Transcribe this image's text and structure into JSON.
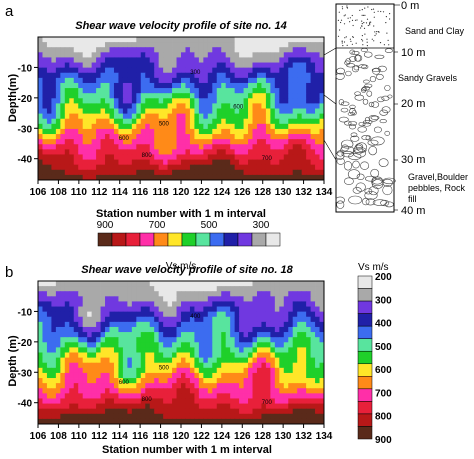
{
  "figure": {
    "panel_a_letter": "a",
    "panel_b_letter": "b"
  },
  "colors": {
    "scale": [
      "#5a2a1a",
      "#b81818",
      "#e8203a",
      "#ff2fa8",
      "#ff8a18",
      "#ffe628",
      "#1fd02a",
      "#58e49e",
      "#3c6cf0",
      "#2020a8",
      "#7038e0",
      "#a9a9a9",
      "#e8e8e8"
    ]
  },
  "chart_data": [
    {
      "type": "heatmap",
      "title": "Shear wave velocity profile of site no. 14",
      "xlabel": "Station number with 1 m interval",
      "ylabel": "Depth(m)",
      "x_ticks": [
        "106",
        "108",
        "110",
        "112",
        "114",
        "116",
        "118",
        "120",
        "122",
        "124",
        "126",
        "128",
        "130",
        "132",
        "134"
      ],
      "y_ticks": [
        "-10",
        "-20",
        "-30",
        "-40"
      ],
      "xlim": [
        106,
        134
      ],
      "ylim": [
        -47,
        0
      ],
      "value_unit": "m/s",
      "contour_labels": [
        "300",
        "500",
        "600",
        "700",
        "800",
        "600"
      ],
      "legend": {
        "title": "Vs m/s",
        "tick_labels": [
          "900",
          "700",
          "500",
          "300"
        ],
        "orientation": "horizontal"
      },
      "approx_velocity_by_depth": {
        "depth_m": [
          -2,
          -6,
          -10,
          -14,
          -18,
          -22,
          -26,
          -30,
          -34,
          -38,
          -42,
          -46
        ],
        "vs_m_s": [
          250,
          300,
          350,
          400,
          450,
          500,
          550,
          580,
          620,
          680,
          750,
          850
        ]
      }
    },
    {
      "type": "heatmap",
      "title": "Shear wave velocity profile of site no. 18",
      "xlabel": "Station number with 1 m interval",
      "ylabel": "Depth (m)",
      "x_ticks": [
        "106",
        "108",
        "110",
        "112",
        "114",
        "116",
        "118",
        "120",
        "122",
        "124",
        "126",
        "128",
        "130",
        "132",
        "134"
      ],
      "y_ticks": [
        "-10",
        "-20",
        "-30",
        "-40"
      ],
      "xlim": [
        106,
        134
      ],
      "ylim": [
        -47,
        0
      ],
      "value_unit": "m/s",
      "contour_labels": [
        "400",
        "500",
        "600",
        "700",
        "800"
      ],
      "legend": {
        "title": "Vs m/s",
        "tick_labels": [
          "200",
          "300",
          "400",
          "500",
          "600",
          "700",
          "800",
          "900"
        ],
        "orientation": "vertical"
      },
      "approx_velocity_by_depth": {
        "depth_m": [
          -2,
          -6,
          -10,
          -14,
          -18,
          -22,
          -26,
          -30,
          -34,
          -38,
          -42,
          -46
        ],
        "vs_m_s": [
          300,
          350,
          380,
          420,
          480,
          520,
          560,
          600,
          640,
          700,
          780,
          880
        ]
      }
    }
  ],
  "stratigraphy": {
    "layers": [
      {
        "label": "Sand and Clay",
        "depth_label": "0 m"
      },
      {
        "label": "Sandy Gravels",
        "depth_label": "10 m"
      },
      {
        "label": "",
        "depth_label": "20 m"
      },
      {
        "label": "Gravel,Boulder pebbles, Rock fill",
        "depth_label": "30 m"
      },
      {
        "label": "",
        "depth_label": "40 m"
      }
    ],
    "sand_label": "Sand and Clay",
    "gravel_label": "Sandy Gravels",
    "boulder_label_lines": [
      "Gravel,Boulder",
      "pebbles, Rock",
      "fill"
    ],
    "depth_labels": [
      "0 m",
      "10 m",
      "20 m",
      "30 m",
      "40 m"
    ]
  }
}
